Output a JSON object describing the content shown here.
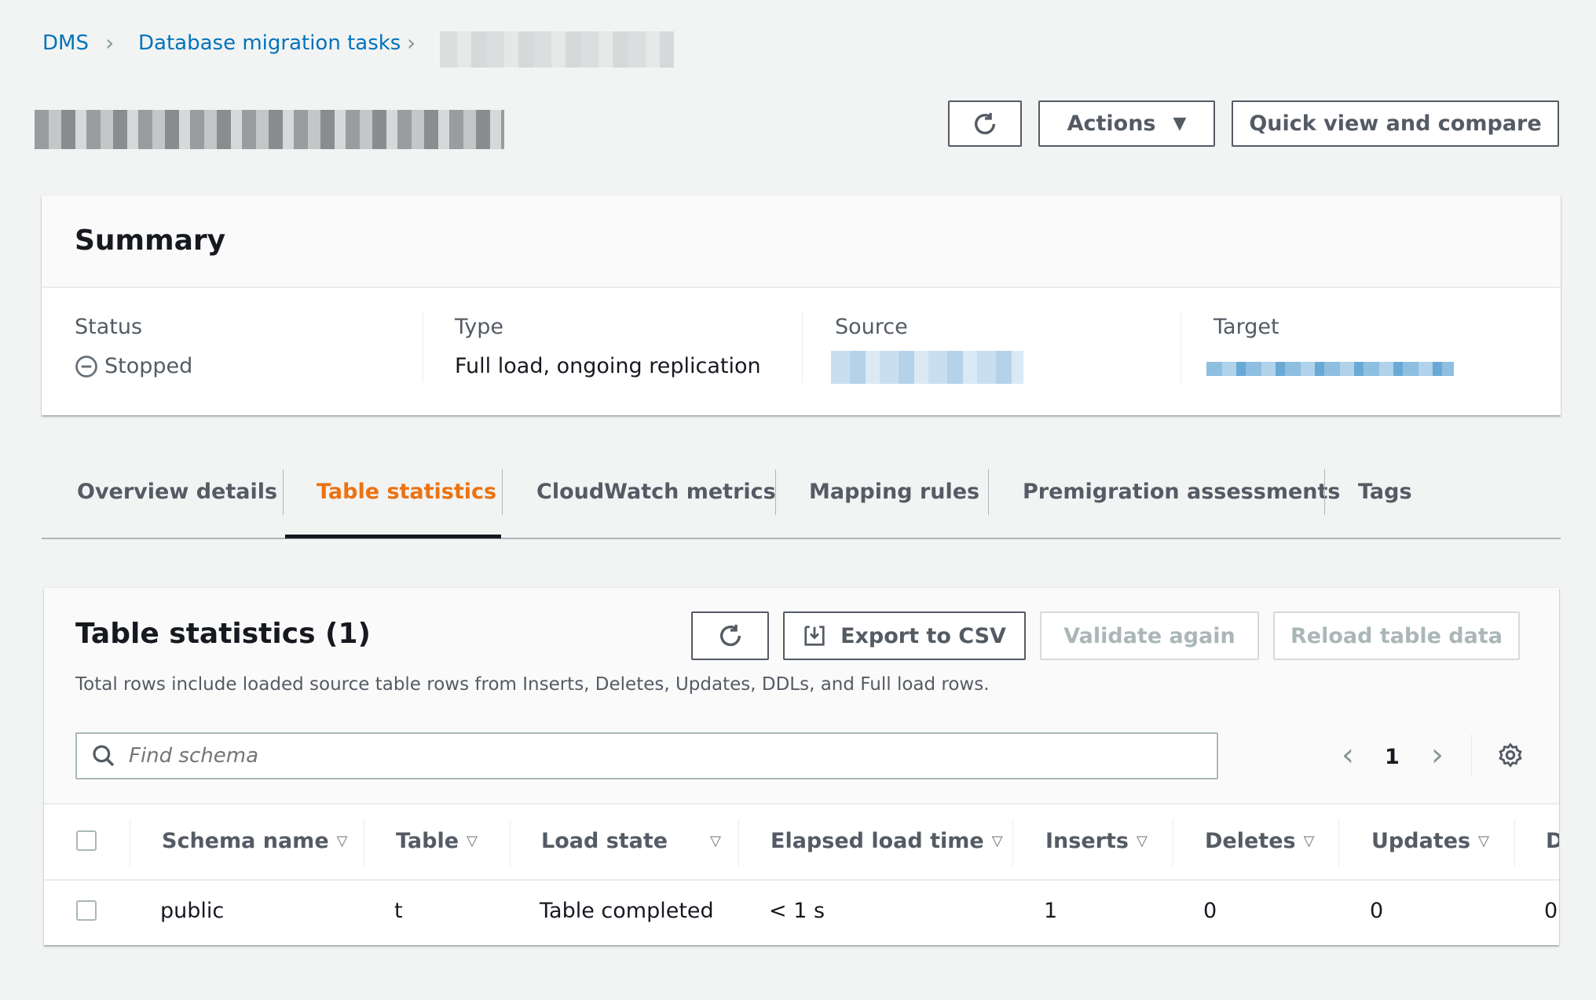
{
  "breadcrumb": {
    "items": [
      "DMS",
      "Database migration tasks"
    ]
  },
  "header": {
    "actions_label": "Actions",
    "quick_view_label": "Quick view and compare"
  },
  "summary": {
    "title": "Summary",
    "status_label": "Status",
    "status_value": "Stopped",
    "type_label": "Type",
    "type_value": "Full load, ongoing replication",
    "source_label": "Source",
    "target_label": "Target"
  },
  "tabs": [
    {
      "label": "Overview details"
    },
    {
      "label": "Table statistics",
      "active": true
    },
    {
      "label": "CloudWatch metrics"
    },
    {
      "label": "Mapping rules"
    },
    {
      "label": "Premigration assessments"
    },
    {
      "label": "Tags"
    }
  ],
  "table_stats": {
    "title": "Table statistics (1)",
    "export_label": "Export to CSV",
    "validate_label": "Validate again",
    "reload_label": "Reload table data",
    "description": "Total rows include loaded source table rows from Inserts, Deletes, Updates, DDLs, and Full load rows.",
    "search_placeholder": "Find schema",
    "page": "1",
    "columns": [
      "Schema name",
      "Table",
      "Load state",
      "Elapsed load time",
      "Inserts",
      "Deletes",
      "Updates",
      "D"
    ],
    "rows": [
      [
        "public",
        "t",
        "Table completed",
        "< 1 s",
        "1",
        "0",
        "0",
        "0"
      ]
    ]
  },
  "colors": {
    "link": "#0073bb",
    "active_tab": "#ec7211",
    "disabled": "#aab7b8"
  }
}
